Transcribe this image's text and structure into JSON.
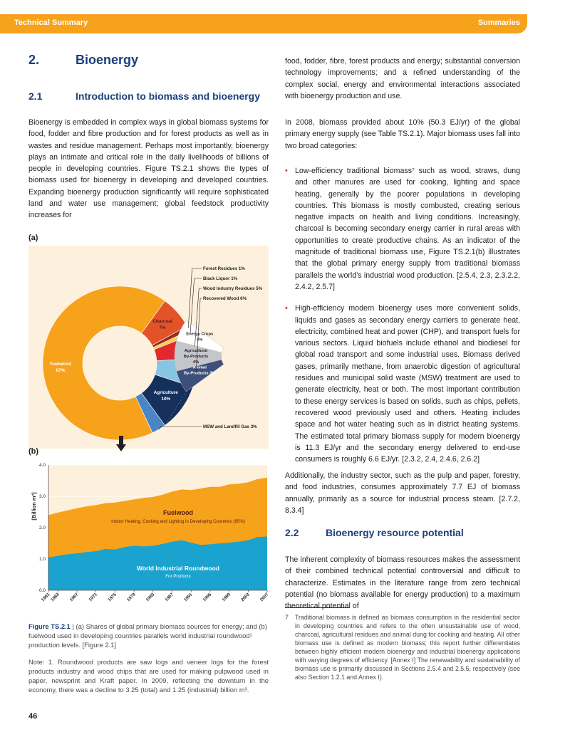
{
  "header": {
    "left": "Technical Summary",
    "right": "Summaries"
  },
  "section": {
    "number": "2.",
    "title": "Bioenergy"
  },
  "subsection1": {
    "number": "2.1",
    "title": "Introduction to biomass and bioenergy"
  },
  "left_para1": "Bioenergy is embedded in complex ways in global biomass systems for food, fodder and fibre production and for forest products as well as in wastes and residue management. Perhaps most importantly, bioenergy plays an intimate and critical role in the daily livelihoods of billions of people in developing countries. Figure TS.2.1 shows the types of biomass used for bioenergy in developing and developed countries. Expanding bioenergy production significantly will require sophisticated land and water use management; global feedstock productivity increases for",
  "right_para1": "food, fodder, fibre, forest products and energy; substantial conversion technology improvements; and a refined understanding of the complex social, energy and environmental interactions associated with bioenergy production and use.",
  "right_para2": "In 2008, biomass provided about 10% (50.3 EJ/yr) of the global primary energy supply (see Table TS.2.1). Major biomass uses fall into two broad categories:",
  "bullets": [
    "Low-efficiency traditional biomass⁷ such as wood, straws, dung and other manures are used for cooking, lighting and space heating, generally by the poorer populations in developing countries. This biomass is mostly combusted, creating serious negative impacts on health and living conditions. Increasingly, charcoal is becoming secondary energy carrier in rural areas with opportunities to create productive chains. As an indicator of the magnitude of traditional biomass use, Figure TS.2.1(b) illustrates that the global primary energy supply from traditional biomass parallels the world’s industrial wood production. [2.5.4, 2.3, 2.3.2.2, 2.4.2, 2.5.7]",
    "High-efficiency modern bioenergy uses more convenient solids, liquids and gases as secondary energy carriers to generate heat, electricity, combined heat and power (CHP), and transport fuels for various sectors. Liquid biofuels include ethanol and biodiesel for global road transport and some industrial uses. Biomass derived gases, primarily methane, from anaerobic digestion of agricultural residues and municipal solid waste (MSW) treatment are used to generate electricity, heat or both. The most important contribution to these energy services is based on solids, such as chips, pellets, recovered wood previously used and others. Heating includes space and hot water heating such as in district heating systems. The estimated total primary biomass supply for modern bioenergy is 11.3 EJ/yr and the secondary energy delivered to end-use consumers is roughly 6.6 EJ/yr. [2.3.2, 2.4, 2.4.6, 2.6.2]"
  ],
  "right_para3": "Additionally, the industry sector, such as the pulp and paper, forestry, and food industries, consumes approximately 7.7 EJ of biomass annually, primarily as a source for industrial process steam. [2.7.2, 8.3.4]",
  "subsection2": {
    "number": "2.2",
    "title": "Bioenergy resource potential"
  },
  "right_para4": "The inherent complexity of biomass resources makes the assessment of their combined technical potential controversial and difficult to characterize. Estimates in the literature range from zero technical potential (no biomass available for energy production) to a maximum theoretical potential of",
  "figure": {
    "panel_a_label": "(a)",
    "panel_b_label": "(b)",
    "caption_label": "Figure TS.2.1",
    "caption_text": " | (a) Shares of global primary biomass sources for energy; and (b) fuelwood used in developing countries parallels world industrial roundwood¹ production levels. [Figure 2.1]",
    "note": "Note: 1. Roundwood products are saw logs and veneer logs for the forest products industry and wood chips that are used for making pulpwood used in paper, newsprint and Kraft paper. In 2009, reflecting the downturn in the economy, there was a decline to 3.25 (total) and 1.25 (industrial) billion m³."
  },
  "chart_data": [
    {
      "type": "pie",
      "slices": [
        {
          "label": "Fuelwood",
          "value": 67,
          "color": "#f7a21b"
        },
        {
          "label": "Charcoal",
          "value": 7,
          "color": "#e2532a"
        },
        {
          "label": "Forest Residues",
          "value": 1,
          "color": "#9b2a1e"
        },
        {
          "label": "Black Liquor",
          "value": 1,
          "color": "#f5d04a"
        },
        {
          "label": "Wood Industry Residues",
          "value": 5,
          "color": "#e02a2f"
        },
        {
          "label": "Recovered Wood",
          "value": 6,
          "color": "#87c6e2"
        },
        {
          "label": "Agriculture",
          "value": 10,
          "color": "#15305c"
        },
        {
          "label": "MSW and Landfill Gas",
          "value": 3,
          "color": "#4a86c5"
        }
      ],
      "labels": {
        "fuelwood": "Fuelwood",
        "fuelwood_pct": "67%",
        "charcoal": "Charcoal",
        "charcoal_pct": "7%",
        "agriculture": "Agriculture",
        "agriculture_pct": "10%",
        "forest_residues": "Forest Residues 1%",
        "black_liquor": "Black Liquor 1%",
        "wood_industry": "Wood Industry Residues 5%",
        "recovered_wood": "Recovered Wood 6%",
        "msw": "MSW and Landfill Gas 3%"
      },
      "breakdown": [
        {
          "label_line1": "Animal",
          "label_line2": "By-Products 3%",
          "label_line3": "",
          "value": 3,
          "color": "#3d4f7a"
        },
        {
          "label_line1": "Agricultural",
          "label_line2": "By-Products",
          "label_line3": "4%",
          "value": 4,
          "color": "#c5c6cc"
        },
        {
          "label_line1": "Energy Crops",
          "label_line2": "3%",
          "label_line3": "",
          "value": 3,
          "color": "#ffffff"
        }
      ]
    },
    {
      "type": "area",
      "ylabel": "[Billion m³]",
      "ylim": [
        0,
        4
      ],
      "yticks": [
        "0.0",
        "1.0",
        "2.0",
        "3.0",
        "4.0"
      ],
      "xticks": [
        "1961",
        "1963",
        "1967",
        "1971",
        "1975",
        "1979",
        "1983",
        "1987",
        "1991",
        "1995",
        "1999",
        "2003",
        "2007"
      ],
      "x": [
        1961,
        1963,
        1965,
        1967,
        1969,
        1971,
        1973,
        1975,
        1977,
        1979,
        1981,
        1983,
        1985,
        1987,
        1989,
        1991,
        1993,
        1995,
        1997,
        1999,
        2001,
        2003,
        2005,
        2007
      ],
      "series": [
        {
          "name": "World Industrial Roundwood",
          "sublabel": "For Products",
          "color": "#1aa3cf",
          "values": [
            1.05,
            1.1,
            1.15,
            1.18,
            1.22,
            1.25,
            1.32,
            1.3,
            1.38,
            1.42,
            1.4,
            1.42,
            1.48,
            1.55,
            1.6,
            1.52,
            1.45,
            1.47,
            1.5,
            1.52,
            1.55,
            1.6,
            1.7,
            1.72
          ]
        },
        {
          "name": "Fuelwood",
          "sublabel": "Indoor Heating, Cooking and Lighting in Developing Countries (95%)",
          "color": "#f7a21b",
          "values": [
            2.4,
            2.48,
            2.55,
            2.62,
            2.68,
            2.72,
            2.78,
            2.8,
            2.85,
            2.9,
            2.95,
            2.98,
            3.05,
            3.15,
            3.22,
            3.2,
            3.25,
            3.3,
            3.3,
            3.38,
            3.4,
            3.45,
            3.55,
            3.6
          ]
        }
      ]
    }
  ],
  "footnote": {
    "mark": "7",
    "text": "Traditional biomass is defined as biomass consumption in the residential sector in developing countries and refers to the often unsustainable use of wood, charcoal, agricultural residues and animal dung for cooking and heating. All other biomass use is defined as modern biomass; this report further differentiates between highly efficient modern bioenergy and industrial bioenergy applications with varying degrees of efficiency. [Annex I] The renewability and sustainability of biomass use is primarily discussed in Sections 2.5.4 and 2.5.5, respectively (see also Section 1.2.1 and Annex I)."
  },
  "page_number": "46"
}
